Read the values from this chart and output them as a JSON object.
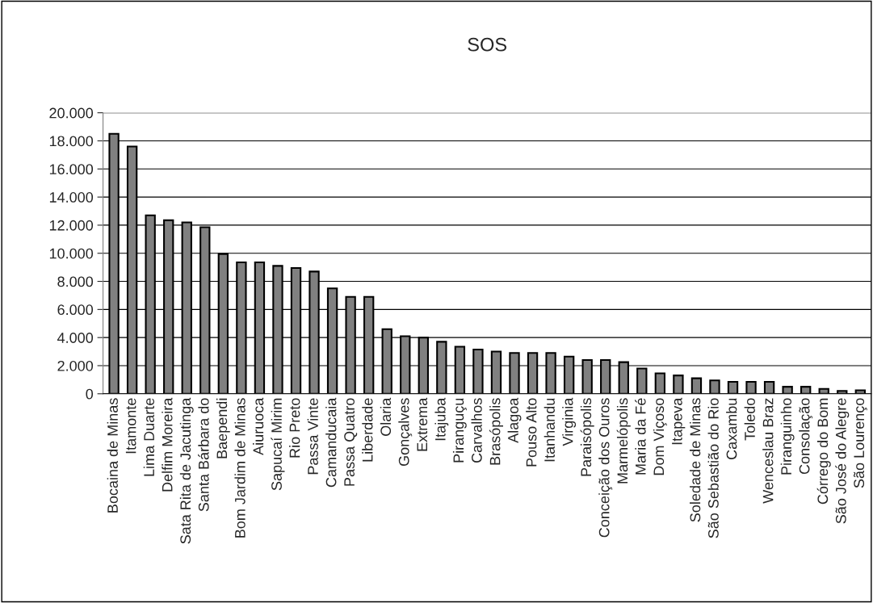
{
  "chart_data": {
    "type": "bar",
    "title": "SOS",
    "categories": [
      "Bocaina de Minas",
      "Itamonte",
      "Lima Duarte",
      "Delfim Moreira",
      "Sata Rita de Jacutinga",
      "Santa Bárbara do",
      "Baependi",
      "Bom Jardim de Minas",
      "Aiuruoca",
      "Sapucaí Mirim",
      "Rio Preto",
      "Passa Vinte",
      "Camanducaia",
      "Passa Quatro",
      "Liberdade",
      "Olaria",
      "Gonçalves",
      "Extrema",
      "Itajuba",
      "Piranguçu",
      "Carvalhos",
      "Brasópolis",
      "Alagoa",
      "Pouso Alto",
      "Itanhandu",
      "Virginia",
      "Paraisópolis",
      "Conceição dos Ouros",
      "Marmelópolis",
      "Maria da Fé",
      "Dom Viçoso",
      "Itapeva",
      "Soledade de Minas",
      "São Sebastião do Rio",
      "Caxambu",
      "Toledo",
      "Wenceslau Braz",
      "Piranguinho",
      "Consolação",
      "Córrego do Bom",
      "São José do Alegre",
      "São Lourenço"
    ],
    "values": [
      18500,
      17600,
      12700,
      12350,
      12200,
      11850,
      9950,
      9350,
      9350,
      9100,
      8950,
      8700,
      7500,
      6900,
      6900,
      4600,
      4100,
      4000,
      3700,
      3350,
      3150,
      3000,
      2900,
      2900,
      2900,
      2650,
      2400,
      2400,
      2250,
      1800,
      1450,
      1300,
      1100,
      950,
      850,
      850,
      850,
      500,
      500,
      350,
      200,
      250
    ],
    "color": "#808080",
    "ylim": [
      0,
      20000
    ],
    "yticks": [
      {
        "value": 0,
        "label": "0"
      },
      {
        "value": 2000,
        "label": "2.000"
      },
      {
        "value": 4000,
        "label": "4.000"
      },
      {
        "value": 6000,
        "label": "6.000"
      },
      {
        "value": 8000,
        "label": "8.000"
      },
      {
        "value": 10000,
        "label": "10.000"
      },
      {
        "value": 12000,
        "label": "12.000"
      },
      {
        "value": 14000,
        "label": "14.000"
      },
      {
        "value": 16000,
        "label": "16.000"
      },
      {
        "value": 18000,
        "label": "18.000"
      },
      {
        "value": 20000,
        "label": "20.000"
      }
    ],
    "grid": "y"
  }
}
